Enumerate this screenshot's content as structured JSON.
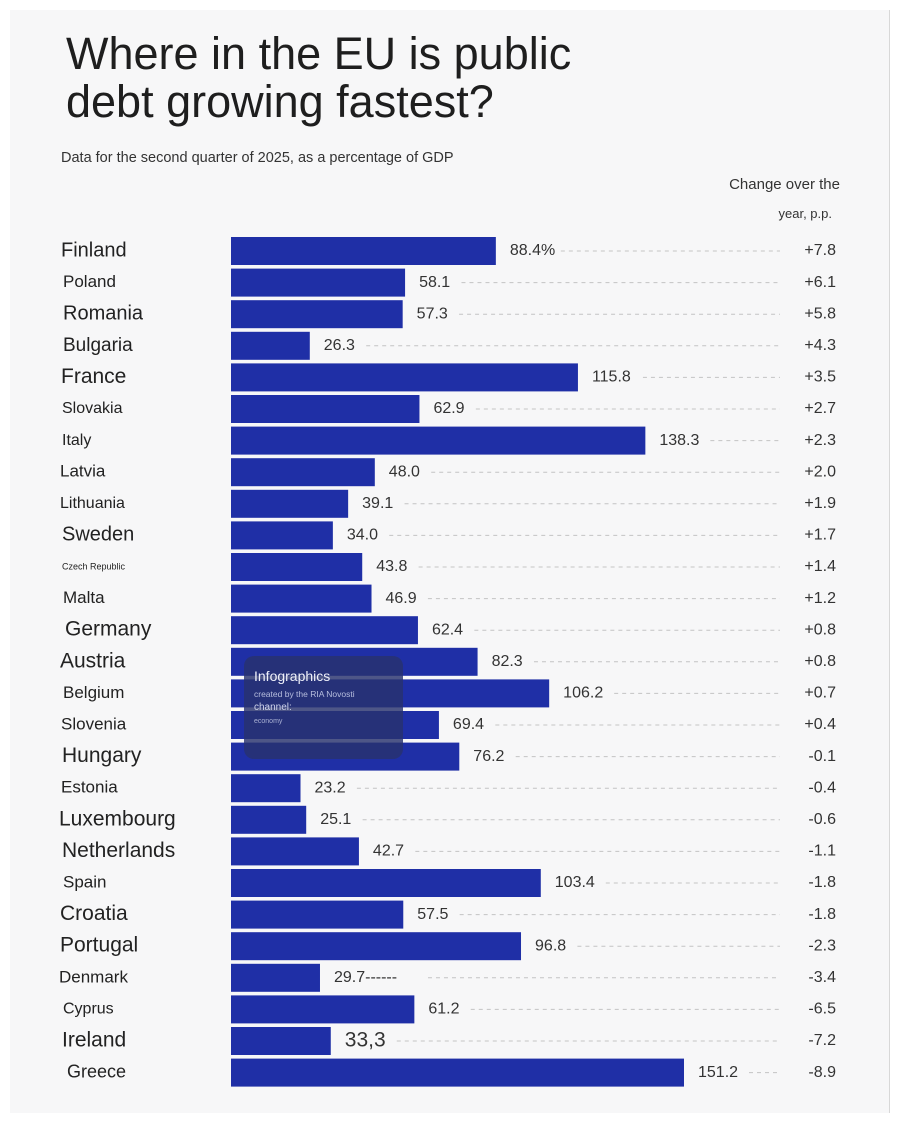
{
  "title": "Where in the EU is public debt growing fastest?",
  "subtitle": "Data for the second quarter of 2025, as a percentage of GDP",
  "change_header": [
    "Change over the",
    "year, p.p."
  ],
  "watermark": {
    "line1": "Infographics",
    "line2": "created by the RIA Novosti",
    "line3": "channel:",
    "line4": "economy"
  },
  "colors": {
    "bar": "#1f2fa6",
    "dash": "#c4c4c4",
    "background": "#f7f7f8"
  },
  "chart_data": {
    "type": "bar",
    "orientation": "horizontal",
    "title": "Where in the EU is public debt growing fastest?",
    "subtitle": "Data for the second quarter of 2025, as a percentage of GDP",
    "categories": [
      "Finland",
      "Poland",
      "Romania",
      "Bulgaria",
      "France",
      "Slovakia",
      "Italy",
      "Latvia",
      "Lithuania",
      "Sweden",
      "Czech Republic",
      "Malta",
      "Germany",
      "Austria",
      "Belgium",
      "Slovenia",
      "Hungary",
      "Estonia",
      "Luxembourg",
      "Netherlands",
      "Spain",
      "Croatia",
      "Portugal",
      "Denmark",
      "Cyprus",
      "Ireland",
      "Greece"
    ],
    "values": [
      88.4,
      58.1,
      57.3,
      26.3,
      115.8,
      62.9,
      138.3,
      48.0,
      39.1,
      34.0,
      43.8,
      46.9,
      62.4,
      82.3,
      106.2,
      69.4,
      76.2,
      23.2,
      25.1,
      42.7,
      103.4,
      57.5,
      96.8,
      29.7,
      61.2,
      33.3,
      151.2
    ],
    "value_labels": [
      "88.4%",
      "58.1",
      "57.3",
      "26.3",
      "115.8",
      "62.9",
      "138.3",
      "48.0",
      "39.1",
      "34.0",
      "43.8",
      "46.9",
      "62.4",
      "82.3",
      "106.2",
      "69.4",
      "76.2",
      "23.2",
      "25.1",
      "42.7",
      "103.4",
      "57.5",
      "96.8",
      "29.7------",
      "61.2",
      "33,3",
      "151.2"
    ],
    "change_labels": [
      "+7.8",
      "+6.1",
      "+5.8",
      "+4.3",
      "+3.5",
      "+2.7",
      "+2.3",
      "+2.0",
      "+1.9",
      "+1.7",
      "+1.4",
      "+1.2",
      "+0.8",
      "+0.8",
      "+0.7",
      "+0.4",
      "-0.1",
      "-0.4",
      "-0.6",
      "-1.1",
      "-1.8",
      "-1.8",
      "-2.3",
      "-3.4",
      "-6.5",
      "-7.2",
      "-8.9"
    ],
    "change_column_title": "Change over the year, p.p.",
    "xlim": [
      0,
      151.2
    ],
    "grid": false,
    "legend": "none"
  }
}
